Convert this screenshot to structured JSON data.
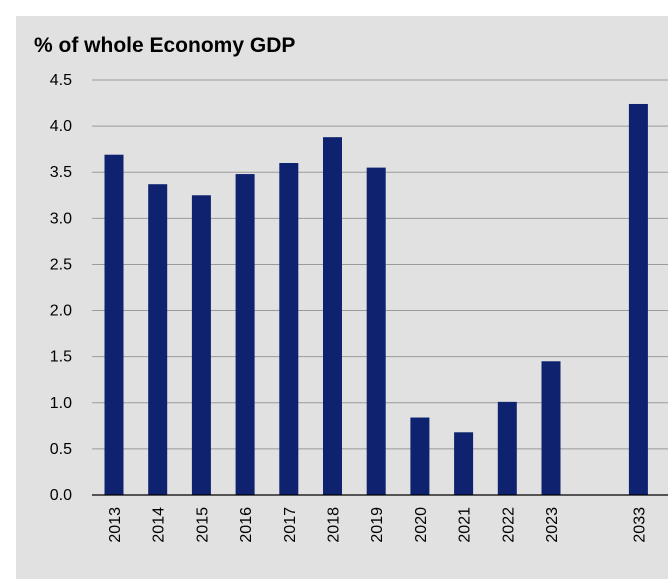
{
  "chart_data": {
    "type": "bar",
    "title": "% of whole Economy GDP",
    "xlabel": "",
    "ylabel": "",
    "ylim": [
      0,
      4.5
    ],
    "yticks": [
      "0.0",
      "0.5",
      "1.0",
      "1.5",
      "2.0",
      "2.5",
      "3.0",
      "3.5",
      "4.0",
      "4.5"
    ],
    "grid": true,
    "legend": "none",
    "bar_color": "#0e2270",
    "background_color": "#e1e1e1",
    "categories": [
      "2013",
      "2014",
      "2015",
      "2016",
      "2017",
      "2018",
      "2019",
      "2020",
      "2021",
      "2022",
      "2023",
      "2033"
    ],
    "category_slots": [
      0,
      1,
      2,
      3,
      4,
      5,
      6,
      7,
      8,
      9,
      10,
      12
    ],
    "values": [
      3.69,
      3.37,
      3.25,
      3.48,
      3.6,
      3.88,
      3.55,
      0.84,
      0.68,
      1.01,
      1.45,
      4.24
    ]
  }
}
